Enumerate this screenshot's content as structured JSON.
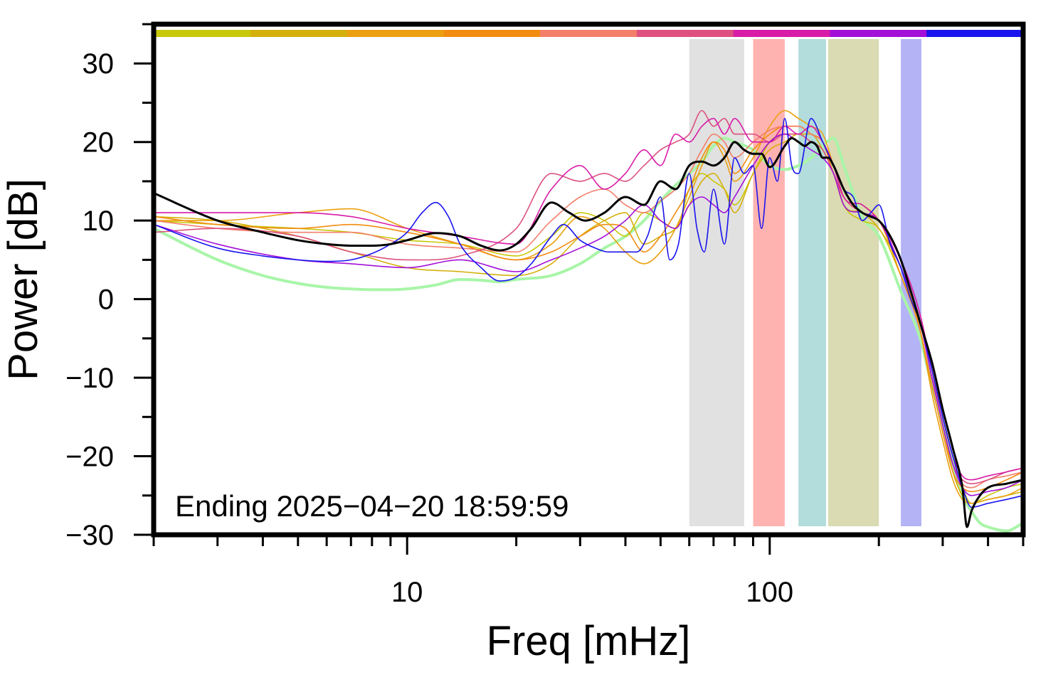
{
  "chart_data": {
    "type": "line",
    "title": "",
    "xlabel": "Freq [mHz]",
    "ylabel": "Power [dB]",
    "xscale": "log",
    "xlim": [
      2,
      500
    ],
    "ylim": [
      -30,
      35
    ],
    "x_ticks": [
      {
        "value": 10,
        "label": "10"
      },
      {
        "value": 100,
        "label": "100"
      }
    ],
    "y_ticks": [
      {
        "value": 30,
        "label": "30"
      },
      {
        "value": 20,
        "label": "20"
      },
      {
        "value": 10,
        "label": "10"
      },
      {
        "value": 0,
        "label": "0"
      },
      {
        "value": -10,
        "label": "−10"
      },
      {
        "value": -20,
        "label": "−20"
      },
      {
        "value": -30,
        "label": "−30"
      }
    ],
    "annotation": "Ending 2025−04−20 18:59:59",
    "color_strip": [
      "#c8c80a",
      "#d4b00c",
      "#eba010",
      "#f28c10",
      "#f37e6a",
      "#dd5080",
      "#d81ca8",
      "#a310d8",
      "#1a14ee"
    ],
    "bands": [
      {
        "x0": 60,
        "x1": 85,
        "color": "#e1e1e1"
      },
      {
        "x0": 90,
        "x1": 110,
        "color": "#ffb3b0"
      },
      {
        "x0": 120,
        "x1": 143,
        "color": "#b3dcdc"
      },
      {
        "x0": 145,
        "x1": 200,
        "color": "#dadab3"
      },
      {
        "x0": 230,
        "x1": 262,
        "color": "#b3b3f5"
      }
    ],
    "series": [
      {
        "color": "#a8f5a8",
        "width": 4,
        "x": [
          2,
          3,
          4,
          5,
          6,
          7,
          8,
          9,
          10,
          12,
          14,
          16,
          18,
          20,
          25,
          30,
          35,
          40,
          45,
          50,
          55,
          60,
          65,
          70,
          75,
          80,
          90,
          100,
          110,
          120,
          130,
          140,
          150,
          160,
          180,
          200,
          230,
          260,
          280,
          300,
          320,
          340,
          360,
          380,
          400,
          450,
          500
        ],
        "y": [
          9,
          5,
          3,
          2,
          1.5,
          1.3,
          1.2,
          1.2,
          1.3,
          1.8,
          2.5,
          2.4,
          2.2,
          2.5,
          3,
          4.5,
          6.5,
          8,
          10,
          12.5,
          14.5,
          16,
          17.5,
          19.5,
          20.5,
          20,
          19,
          17,
          16.5,
          17,
          18,
          19.5,
          20.5,
          17,
          10.5,
          8,
          1,
          -5,
          -11,
          -16,
          -21,
          -25,
          -27,
          -28.5,
          -29,
          -29.5,
          -28.5
        ]
      },
      {
        "color": "#c8c80a",
        "width": 1.6,
        "x": [
          2,
          3,
          5,
          7,
          10,
          14,
          20,
          25,
          30,
          35,
          40,
          45,
          50,
          55,
          60,
          65,
          70,
          75,
          80,
          90,
          100,
          110,
          120,
          130,
          140,
          150,
          160,
          180,
          200,
          230,
          260,
          280,
          300,
          320,
          340,
          360,
          400,
          450,
          500
        ],
        "y": [
          10,
          9.5,
          9,
          8.5,
          7.5,
          7,
          5.5,
          8,
          11,
          10,
          8,
          11,
          10,
          9,
          14,
          16,
          15,
          14,
          12,
          16,
          20,
          21,
          21,
          20,
          19,
          16,
          12,
          10,
          9,
          3,
          -3,
          -9,
          -15,
          -20,
          -24,
          -26,
          -25,
          -24,
          -23.5
        ]
      },
      {
        "color": "#d4b00c",
        "width": 1.6,
        "x": [
          2,
          3,
          5,
          7,
          10,
          14,
          20,
          25,
          30,
          35,
          40,
          45,
          50,
          55,
          60,
          65,
          70,
          75,
          80,
          90,
          100,
          110,
          120,
          130,
          140,
          150,
          160,
          180,
          200,
          230,
          260,
          280,
          300,
          320,
          340,
          360,
          400,
          450,
          500
        ],
        "y": [
          10.5,
          10,
          8,
          6,
          4,
          3.5,
          3,
          4.5,
          8,
          10,
          11,
          7,
          8,
          9,
          12,
          15,
          16,
          14,
          11,
          16,
          19,
          20,
          21,
          21,
          19,
          16,
          12,
          11,
          9,
          4,
          -3,
          -10,
          -16,
          -22,
          -25,
          -26,
          -25.5,
          -25,
          -24.5
        ]
      },
      {
        "color": "#eba010",
        "width": 1.6,
        "x": [
          2,
          3,
          5,
          7,
          10,
          14,
          20,
          25,
          30,
          35,
          40,
          45,
          50,
          55,
          60,
          65,
          70,
          75,
          80,
          90,
          100,
          110,
          120,
          130,
          140,
          150,
          160,
          180,
          200,
          230,
          260,
          280,
          300,
          320,
          340,
          360,
          400,
          450,
          500
        ],
        "y": [
          10,
          10,
          11,
          11.5,
          9,
          7,
          5,
          7,
          10.5,
          9,
          6,
          4.5,
          6,
          9,
          13,
          17,
          20,
          18,
          15,
          18,
          22,
          24,
          23,
          22,
          21,
          17,
          13,
          12,
          10,
          4,
          -4,
          -12,
          -18,
          -23,
          -25.5,
          -26,
          -25.5,
          -25,
          -24
        ]
      },
      {
        "color": "#f28c10",
        "width": 1.6,
        "x": [
          2,
          3,
          5,
          7,
          10,
          14,
          20,
          25,
          30,
          35,
          40,
          45,
          50,
          55,
          60,
          65,
          70,
          75,
          80,
          90,
          100,
          110,
          120,
          130,
          140,
          150,
          160,
          180,
          200,
          230,
          260,
          280,
          300,
          320,
          340,
          360,
          400,
          450,
          500
        ],
        "y": [
          10.5,
          9.5,
          9,
          9.5,
          8.5,
          7,
          5,
          6,
          8,
          9.5,
          9,
          6,
          8,
          11,
          14,
          18,
          20,
          19,
          16,
          19,
          21,
          22,
          22,
          21,
          20,
          16,
          13,
          11,
          10,
          3,
          -4,
          -11,
          -17,
          -22,
          -24,
          -24.5,
          -24,
          -23,
          -22
        ]
      },
      {
        "color": "#f37e6a",
        "width": 1.6,
        "x": [
          2,
          3,
          5,
          7,
          10,
          14,
          20,
          25,
          30,
          35,
          40,
          45,
          50,
          55,
          60,
          65,
          70,
          75,
          80,
          90,
          100,
          110,
          120,
          130,
          140,
          150,
          160,
          180,
          200,
          230,
          260,
          280,
          300,
          320,
          340,
          360,
          400,
          450,
          500
        ],
        "y": [
          10,
          9,
          8.5,
          8.5,
          7,
          6.5,
          6,
          10,
          13,
          14,
          12,
          11,
          12.5,
          14,
          16,
          19,
          21,
          20,
          18,
          20,
          21.5,
          22,
          22,
          21,
          20,
          17,
          13,
          12,
          10,
          5,
          -2,
          -9,
          -16,
          -21,
          -23.5,
          -24,
          -23,
          -22.5,
          -22
        ]
      },
      {
        "color": "#dd5080",
        "width": 1.6,
        "x": [
          2,
          3,
          5,
          7,
          10,
          14,
          20,
          25,
          30,
          35,
          40,
          45,
          50,
          55,
          60,
          65,
          70,
          75,
          80,
          90,
          100,
          110,
          120,
          130,
          140,
          150,
          160,
          180,
          200,
          230,
          260,
          280,
          300,
          320,
          340,
          360,
          400,
          450,
          500
        ],
        "y": [
          8.5,
          9,
          8,
          6,
          5,
          5.5,
          9,
          16,
          15,
          16,
          15,
          17,
          19,
          20,
          21,
          24,
          22,
          23,
          21,
          21,
          20,
          21,
          21,
          20,
          19,
          16,
          13,
          11,
          10,
          4,
          -3,
          -10,
          -16,
          -21,
          -23,
          -23.5,
          -23,
          -22,
          -21.5
        ]
      },
      {
        "color": "#d81ca8",
        "width": 1.6,
        "x": [
          2,
          3,
          5,
          7,
          10,
          14,
          20,
          25,
          30,
          35,
          40,
          45,
          50,
          55,
          60,
          65,
          70,
          75,
          80,
          90,
          100,
          110,
          120,
          130,
          140,
          150,
          160,
          180,
          200,
          230,
          260,
          280,
          300,
          320,
          340,
          360,
          400,
          450,
          500
        ],
        "y": [
          11,
          11,
          11,
          10.5,
          9,
          8,
          7,
          14,
          17,
          14,
          16,
          19,
          17,
          21,
          20,
          22,
          23,
          21,
          23,
          20,
          20,
          22,
          21,
          22,
          20,
          17,
          13,
          12,
          10,
          5,
          -2,
          -9,
          -15,
          -20,
          -22.5,
          -23,
          -22.5,
          -22,
          -21.5
        ]
      },
      {
        "color": "#a310d8",
        "width": 1.6,
        "x": [
          2,
          3,
          5,
          7,
          10,
          14,
          20,
          25,
          30,
          35,
          40,
          45,
          50,
          55,
          60,
          65,
          70,
          75,
          80,
          90,
          100,
          110,
          120,
          130,
          140,
          150,
          160,
          180,
          200,
          230,
          260,
          280,
          300,
          320,
          340,
          360,
          400,
          450,
          500
        ],
        "y": [
          9.5,
          7,
          5,
          4.5,
          4,
          5,
          3.5,
          5,
          6.5,
          8,
          10,
          12,
          10,
          9,
          12,
          13,
          12,
          11,
          13,
          17,
          20,
          21,
          20,
          19,
          18,
          16,
          12,
          11,
          10,
          4,
          -3,
          -10,
          -16,
          -21,
          -24,
          -25,
          -24.5,
          -24,
          -23
        ]
      },
      {
        "color": "#1a14ee",
        "width": 1.6,
        "x": [
          2,
          3,
          4,
          5,
          6,
          7,
          8,
          9,
          10,
          11,
          12,
          13,
          14,
          16,
          18,
          20,
          22,
          25,
          27,
          30,
          33,
          36,
          40,
          43,
          46,
          50,
          53,
          56,
          60,
          63,
          66,
          70,
          75,
          80,
          85,
          90,
          95,
          100,
          105,
          110,
          115,
          120,
          130,
          140,
          150,
          160,
          170,
          180,
          190,
          200,
          215,
          230,
          245,
          260,
          280,
          300,
          320,
          340,
          360,
          400,
          450,
          500
        ],
        "y": [
          9.5,
          6.5,
          5.5,
          5,
          4.8,
          5,
          5.8,
          7,
          8.5,
          11,
          12.3,
          10.5,
          7,
          4,
          2.3,
          2.8,
          4.5,
          8,
          9.5,
          7.5,
          6.5,
          6,
          6,
          6,
          8,
          13,
          5,
          7,
          16,
          9,
          6,
          14,
          7,
          18,
          16,
          17,
          9,
          18,
          15,
          23,
          17,
          16,
          23,
          20,
          17,
          14,
          13,
          10,
          11,
          12,
          7,
          4,
          0,
          -3,
          -9,
          -15,
          -20,
          -24,
          -26.5,
          -26,
          -25.5,
          -25
        ]
      },
      {
        "color": "#000000",
        "width": 3,
        "x": [
          2,
          3,
          4,
          5,
          6,
          7,
          8,
          9,
          10,
          12,
          14,
          16,
          18,
          20,
          22,
          25,
          28,
          31,
          35,
          40,
          45,
          50,
          55,
          60,
          65,
          70,
          75,
          80,
          85,
          90,
          95,
          100,
          110,
          115,
          120,
          125,
          130,
          135,
          140,
          145,
          150,
          160,
          170,
          180,
          190,
          200,
          215,
          230,
          245,
          260,
          280,
          300,
          320,
          340,
          350,
          360,
          380,
          400,
          450,
          500
        ],
        "y": [
          13.5,
          10,
          8.5,
          7.5,
          7,
          6.8,
          6.8,
          7,
          7.5,
          8.4,
          8,
          6.8,
          6.2,
          7,
          9,
          12.3,
          11,
          10,
          11,
          13,
          12,
          15,
          14,
          17,
          17.5,
          17,
          18,
          20,
          19,
          18.5,
          18.5,
          16.8,
          19.5,
          20.5,
          20,
          19.5,
          20,
          19.5,
          18,
          18,
          17,
          14,
          12,
          11,
          10.5,
          10,
          8,
          5,
          1,
          -3,
          -8,
          -14,
          -19,
          -24,
          -29,
          -27,
          -25,
          -24,
          -23.5,
          -23
        ]
      }
    ]
  }
}
